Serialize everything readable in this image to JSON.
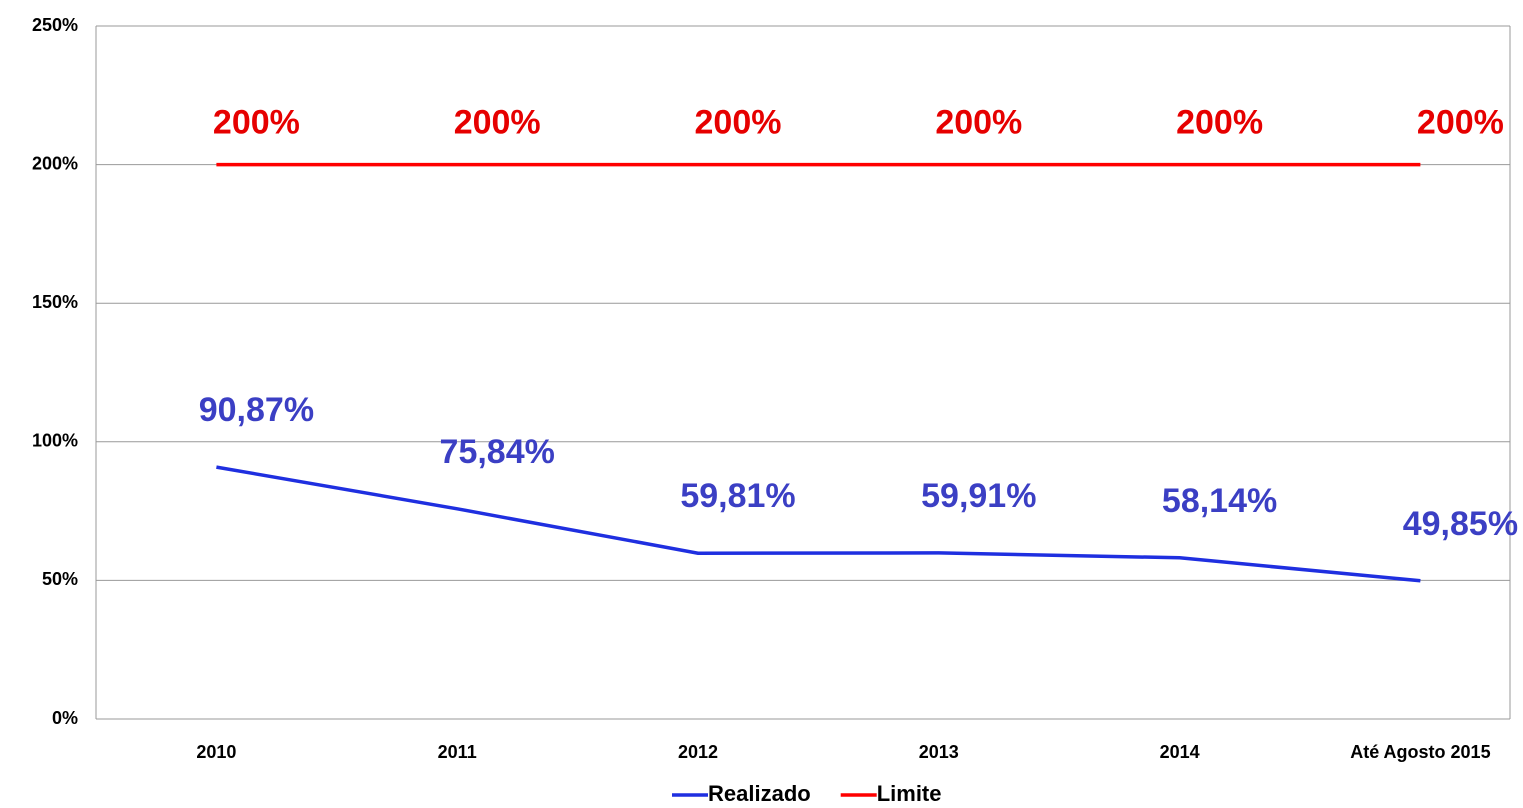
{
  "chart_data": {
    "type": "line",
    "categories": [
      "2010",
      "2011",
      "2012",
      "2013",
      "2014",
      "Até Agosto 2015"
    ],
    "series": [
      {
        "name": "Realizado",
        "color": "#1f2fe0",
        "label_color": "#3b3fc4",
        "values": [
          90.87,
          75.84,
          59.81,
          59.91,
          58.14,
          49.85
        ],
        "value_labels": [
          "90,87%",
          "75,84%",
          "59,81%",
          "59,91%",
          "58,14%",
          "49,85%"
        ]
      },
      {
        "name": "Limite",
        "color": "#ff0000",
        "label_color": "#e60000",
        "values": [
          200,
          200,
          200,
          200,
          200,
          200
        ],
        "value_labels": [
          "200%",
          "200%",
          "200%",
          "200%",
          "200%",
          "200%"
        ]
      }
    ],
    "ylim": [
      0,
      250
    ],
    "yticks": [
      {
        "value": 0,
        "label": "0%"
      },
      {
        "value": 50,
        "label": "50%"
      },
      {
        "value": 100,
        "label": "100%"
      },
      {
        "value": 150,
        "label": "150%"
      },
      {
        "value": 200,
        "label": "200%"
      },
      {
        "value": 250,
        "label": "250%"
      }
    ],
    "grid": true,
    "legend": "bottom"
  }
}
